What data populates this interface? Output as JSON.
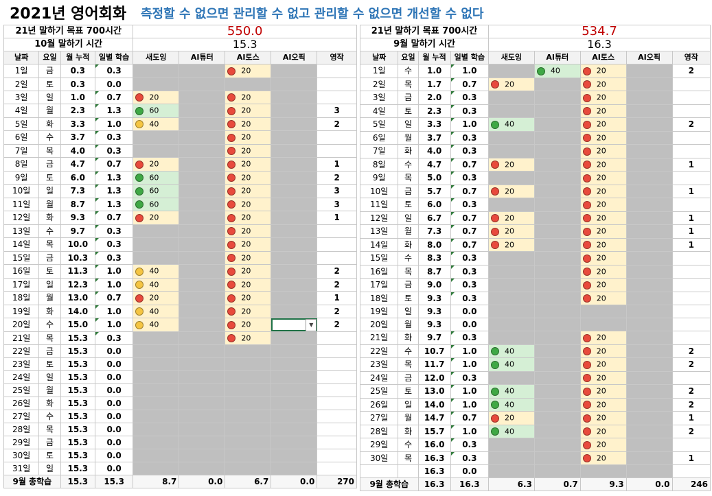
{
  "title": {
    "main": "2021년 영어회화",
    "sub": "측정할 수 없으면  관리할 수 없고 관리할 수 없으면 개선할 수 없다"
  },
  "colors": {
    "red": "#e84a3c",
    "yellow": "#f5c542",
    "green": "#3fa845",
    "gray": "#bfbfbf",
    "goal": "#c00000",
    "subtitle": "#2e75b6"
  },
  "headers": [
    "날짜",
    "요일",
    "월 누적",
    "일별 학습",
    "새도잉",
    "AI튜터",
    "AI토스",
    "AI오픽",
    "영작"
  ],
  "october": {
    "goal_label": "21년 말하기 목표 700시간",
    "goal_value": "550.0",
    "month_label": "10월 말하기 시간",
    "month_value": "15.3",
    "total_label": "9월 총학습",
    "totals": [
      "15.3",
      "15.3",
      "8.7",
      "0.0",
      "6.7",
      "0.0",
      "270"
    ],
    "rows": [
      {
        "date": "1일",
        "day": "금",
        "acc": "0.3",
        "daily": "0.3",
        "sh": null,
        "tu": null,
        "to": {
          "c": "r",
          "v": "20"
        },
        "op": null,
        "en": ""
      },
      {
        "date": "2일",
        "day": "토",
        "acc": "0.3",
        "daily": "0.0",
        "sh": null,
        "tu": null,
        "to": null,
        "op": null,
        "en": ""
      },
      {
        "date": "3일",
        "day": "일",
        "acc": "1.0",
        "daily": "0.7",
        "sh": {
          "c": "r",
          "v": "20"
        },
        "tu": null,
        "to": {
          "c": "r",
          "v": "20"
        },
        "op": null,
        "en": ""
      },
      {
        "date": "4일",
        "day": "월",
        "acc": "2.3",
        "daily": "1.3",
        "sh": {
          "c": "g",
          "v": "60"
        },
        "tu": null,
        "to": {
          "c": "r",
          "v": "20"
        },
        "op": null,
        "en": "3"
      },
      {
        "date": "5일",
        "day": "화",
        "acc": "3.3",
        "daily": "1.0",
        "sh": {
          "c": "y",
          "v": "40"
        },
        "tu": null,
        "to": {
          "c": "r",
          "v": "20"
        },
        "op": null,
        "en": "2"
      },
      {
        "date": "6일",
        "day": "수",
        "acc": "3.7",
        "daily": "0.3",
        "sh": null,
        "tu": null,
        "to": {
          "c": "r",
          "v": "20"
        },
        "op": null,
        "en": ""
      },
      {
        "date": "7일",
        "day": "목",
        "acc": "4.0",
        "daily": "0.3",
        "sh": null,
        "tu": null,
        "to": {
          "c": "r",
          "v": "20"
        },
        "op": null,
        "en": ""
      },
      {
        "date": "8일",
        "day": "금",
        "acc": "4.7",
        "daily": "0.7",
        "sh": {
          "c": "r",
          "v": "20"
        },
        "tu": null,
        "to": {
          "c": "r",
          "v": "20"
        },
        "op": null,
        "en": "1"
      },
      {
        "date": "9일",
        "day": "토",
        "acc": "6.0",
        "daily": "1.3",
        "sh": {
          "c": "g",
          "v": "60"
        },
        "tu": null,
        "to": {
          "c": "r",
          "v": "20"
        },
        "op": null,
        "en": "2"
      },
      {
        "date": "10일",
        "day": "일",
        "acc": "7.3",
        "daily": "1.3",
        "sh": {
          "c": "g",
          "v": "60"
        },
        "tu": null,
        "to": {
          "c": "r",
          "v": "20"
        },
        "op": null,
        "en": "3"
      },
      {
        "date": "11일",
        "day": "월",
        "acc": "8.7",
        "daily": "1.3",
        "sh": {
          "c": "g",
          "v": "60"
        },
        "tu": null,
        "to": {
          "c": "r",
          "v": "20"
        },
        "op": null,
        "en": "3"
      },
      {
        "date": "12일",
        "day": "화",
        "acc": "9.3",
        "daily": "0.7",
        "sh": {
          "c": "r",
          "v": "20"
        },
        "tu": null,
        "to": {
          "c": "r",
          "v": "20"
        },
        "op": null,
        "en": "1"
      },
      {
        "date": "13일",
        "day": "수",
        "acc": "9.7",
        "daily": "0.3",
        "sh": null,
        "tu": null,
        "to": {
          "c": "r",
          "v": "20"
        },
        "op": null,
        "en": ""
      },
      {
        "date": "14일",
        "day": "목",
        "acc": "10.0",
        "daily": "0.3",
        "sh": null,
        "tu": null,
        "to": {
          "c": "r",
          "v": "20"
        },
        "op": null,
        "en": ""
      },
      {
        "date": "15일",
        "day": "금",
        "acc": "10.3",
        "daily": "0.3",
        "sh": null,
        "tu": null,
        "to": {
          "c": "r",
          "v": "20"
        },
        "op": null,
        "en": ""
      },
      {
        "date": "16일",
        "day": "토",
        "acc": "11.3",
        "daily": "1.0",
        "sh": {
          "c": "y",
          "v": "40"
        },
        "tu": null,
        "to": {
          "c": "r",
          "v": "20"
        },
        "op": null,
        "en": "2"
      },
      {
        "date": "17일",
        "day": "일",
        "acc": "12.3",
        "daily": "1.0",
        "sh": {
          "c": "y",
          "v": "40"
        },
        "tu": null,
        "to": {
          "c": "r",
          "v": "20"
        },
        "op": null,
        "en": "2"
      },
      {
        "date": "18일",
        "day": "월",
        "acc": "13.0",
        "daily": "0.7",
        "sh": {
          "c": "r",
          "v": "20"
        },
        "tu": null,
        "to": {
          "c": "r",
          "v": "20"
        },
        "op": null,
        "en": "1"
      },
      {
        "date": "19일",
        "day": "화",
        "acc": "14.0",
        "daily": "1.0",
        "sh": {
          "c": "y",
          "v": "40"
        },
        "tu": null,
        "to": {
          "c": "r",
          "v": "20"
        },
        "op": null,
        "en": "2"
      },
      {
        "date": "20일",
        "day": "수",
        "acc": "15.0",
        "daily": "1.0",
        "sh": {
          "c": "y",
          "v": "40"
        },
        "tu": null,
        "to": {
          "c": "r",
          "v": "20"
        },
        "op": "sel",
        "en": "2"
      },
      {
        "date": "21일",
        "day": "목",
        "acc": "15.3",
        "daily": "0.3",
        "sh": null,
        "tu": null,
        "to": {
          "c": "r",
          "v": "20"
        },
        "op": null,
        "en": ""
      },
      {
        "date": "22일",
        "day": "금",
        "acc": "15.3",
        "daily": "0.0",
        "sh": null,
        "tu": null,
        "to": null,
        "op": null,
        "en": ""
      },
      {
        "date": "23일",
        "day": "토",
        "acc": "15.3",
        "daily": "0.0",
        "sh": null,
        "tu": null,
        "to": null,
        "op": null,
        "en": ""
      },
      {
        "date": "24일",
        "day": "일",
        "acc": "15.3",
        "daily": "0.0",
        "sh": null,
        "tu": null,
        "to": null,
        "op": null,
        "en": ""
      },
      {
        "date": "25일",
        "day": "월",
        "acc": "15.3",
        "daily": "0.0",
        "sh": null,
        "tu": null,
        "to": null,
        "op": null,
        "en": ""
      },
      {
        "date": "26일",
        "day": "화",
        "acc": "15.3",
        "daily": "0.0",
        "sh": null,
        "tu": null,
        "to": null,
        "op": null,
        "en": ""
      },
      {
        "date": "27일",
        "day": "수",
        "acc": "15.3",
        "daily": "0.0",
        "sh": null,
        "tu": null,
        "to": null,
        "op": null,
        "en": ""
      },
      {
        "date": "28일",
        "day": "목",
        "acc": "15.3",
        "daily": "0.0",
        "sh": null,
        "tu": null,
        "to": null,
        "op": null,
        "en": ""
      },
      {
        "date": "29일",
        "day": "금",
        "acc": "15.3",
        "daily": "0.0",
        "sh": null,
        "tu": null,
        "to": null,
        "op": null,
        "en": ""
      },
      {
        "date": "30일",
        "day": "토",
        "acc": "15.3",
        "daily": "0.0",
        "sh": null,
        "tu": null,
        "to": null,
        "op": null,
        "en": ""
      },
      {
        "date": "31일",
        "day": "일",
        "acc": "15.3",
        "daily": "0.0",
        "sh": null,
        "tu": null,
        "to": null,
        "op": null,
        "en": ""
      }
    ]
  },
  "september": {
    "goal_label": "21년 말하기 목표 700시간",
    "goal_value": "534.7",
    "month_label": "9월 말하기 시간",
    "month_value": "16.3",
    "total_label": "9월 총학습",
    "totals": [
      "16.3",
      "16.3",
      "6.3",
      "0.7",
      "9.3",
      "0.0",
      "246"
    ],
    "rows": [
      {
        "date": "1일",
        "day": "수",
        "acc": "1.0",
        "daily": "1.0",
        "sh": null,
        "tu": {
          "c": "g",
          "v": "40"
        },
        "to": {
          "c": "r",
          "v": "20"
        },
        "op": null,
        "en": "2"
      },
      {
        "date": "2일",
        "day": "목",
        "acc": "1.7",
        "daily": "0.7",
        "sh": {
          "c": "r",
          "v": "20"
        },
        "tu": null,
        "to": {
          "c": "r",
          "v": "20"
        },
        "op": null,
        "en": ""
      },
      {
        "date": "3일",
        "day": "금",
        "acc": "2.0",
        "daily": "0.3",
        "sh": null,
        "tu": null,
        "to": {
          "c": "r",
          "v": "20"
        },
        "op": null,
        "en": ""
      },
      {
        "date": "4일",
        "day": "토",
        "acc": "2.3",
        "daily": "0.3",
        "sh": null,
        "tu": null,
        "to": {
          "c": "r",
          "v": "20"
        },
        "op": null,
        "en": ""
      },
      {
        "date": "5일",
        "day": "일",
        "acc": "3.3",
        "daily": "1.0",
        "sh": {
          "c": "g",
          "v": "40"
        },
        "tu": null,
        "to": {
          "c": "r",
          "v": "20"
        },
        "op": null,
        "en": "2"
      },
      {
        "date": "6일",
        "day": "월",
        "acc": "3.7",
        "daily": "0.3",
        "sh": null,
        "tu": null,
        "to": {
          "c": "r",
          "v": "20"
        },
        "op": null,
        "en": ""
      },
      {
        "date": "7일",
        "day": "화",
        "acc": "4.0",
        "daily": "0.3",
        "sh": null,
        "tu": null,
        "to": {
          "c": "r",
          "v": "20"
        },
        "op": null,
        "en": ""
      },
      {
        "date": "8일",
        "day": "수",
        "acc": "4.7",
        "daily": "0.7",
        "sh": {
          "c": "r",
          "v": "20"
        },
        "tu": null,
        "to": {
          "c": "r",
          "v": "20"
        },
        "op": null,
        "en": "1"
      },
      {
        "date": "9일",
        "day": "목",
        "acc": "5.0",
        "daily": "0.3",
        "sh": null,
        "tu": null,
        "to": {
          "c": "r",
          "v": "20"
        },
        "op": null,
        "en": ""
      },
      {
        "date": "10일",
        "day": "금",
        "acc": "5.7",
        "daily": "0.7",
        "sh": {
          "c": "r",
          "v": "20"
        },
        "tu": null,
        "to": {
          "c": "r",
          "v": "20"
        },
        "op": null,
        "en": "1"
      },
      {
        "date": "11일",
        "day": "토",
        "acc": "6.0",
        "daily": "0.3",
        "sh": null,
        "tu": null,
        "to": {
          "c": "r",
          "v": "20"
        },
        "op": null,
        "en": ""
      },
      {
        "date": "12일",
        "day": "일",
        "acc": "6.7",
        "daily": "0.7",
        "sh": {
          "c": "r",
          "v": "20"
        },
        "tu": null,
        "to": {
          "c": "r",
          "v": "20"
        },
        "op": null,
        "en": "1"
      },
      {
        "date": "13일",
        "day": "월",
        "acc": "7.3",
        "daily": "0.7",
        "sh": {
          "c": "r",
          "v": "20"
        },
        "tu": null,
        "to": {
          "c": "r",
          "v": "20"
        },
        "op": null,
        "en": "1"
      },
      {
        "date": "14일",
        "day": "화",
        "acc": "8.0",
        "daily": "0.7",
        "sh": {
          "c": "r",
          "v": "20"
        },
        "tu": null,
        "to": {
          "c": "r",
          "v": "20"
        },
        "op": null,
        "en": "1"
      },
      {
        "date": "15일",
        "day": "수",
        "acc": "8.3",
        "daily": "0.3",
        "sh": null,
        "tu": null,
        "to": {
          "c": "r",
          "v": "20"
        },
        "op": null,
        "en": ""
      },
      {
        "date": "16일",
        "day": "목",
        "acc": "8.7",
        "daily": "0.3",
        "sh": null,
        "tu": null,
        "to": {
          "c": "r",
          "v": "20"
        },
        "op": null,
        "en": ""
      },
      {
        "date": "17일",
        "day": "금",
        "acc": "9.0",
        "daily": "0.3",
        "sh": null,
        "tu": null,
        "to": {
          "c": "r",
          "v": "20"
        },
        "op": null,
        "en": ""
      },
      {
        "date": "18일",
        "day": "토",
        "acc": "9.3",
        "daily": "0.3",
        "sh": null,
        "tu": null,
        "to": {
          "c": "r",
          "v": "20"
        },
        "op": null,
        "en": ""
      },
      {
        "date": "19일",
        "day": "일",
        "acc": "9.3",
        "daily": "0.0",
        "sh": null,
        "tu": null,
        "to": null,
        "op": null,
        "en": ""
      },
      {
        "date": "20일",
        "day": "월",
        "acc": "9.3",
        "daily": "0.0",
        "sh": null,
        "tu": null,
        "to": null,
        "op": null,
        "en": ""
      },
      {
        "date": "21일",
        "day": "화",
        "acc": "9.7",
        "daily": "0.3",
        "sh": null,
        "tu": null,
        "to": {
          "c": "r",
          "v": "20"
        },
        "op": null,
        "en": ""
      },
      {
        "date": "22일",
        "day": "수",
        "acc": "10.7",
        "daily": "1.0",
        "sh": {
          "c": "g",
          "v": "40"
        },
        "tu": null,
        "to": {
          "c": "r",
          "v": "20"
        },
        "op": null,
        "en": "2"
      },
      {
        "date": "23일",
        "day": "목",
        "acc": "11.7",
        "daily": "1.0",
        "sh": {
          "c": "g",
          "v": "40"
        },
        "tu": null,
        "to": {
          "c": "r",
          "v": "20"
        },
        "op": null,
        "en": "2"
      },
      {
        "date": "24일",
        "day": "금",
        "acc": "12.0",
        "daily": "0.3",
        "sh": null,
        "tu": null,
        "to": {
          "c": "r",
          "v": "20"
        },
        "op": null,
        "en": ""
      },
      {
        "date": "25일",
        "day": "토",
        "acc": "13.0",
        "daily": "1.0",
        "sh": {
          "c": "g",
          "v": "40"
        },
        "tu": null,
        "to": {
          "c": "r",
          "v": "20"
        },
        "op": null,
        "en": "2"
      },
      {
        "date": "26일",
        "day": "일",
        "acc": "14.0",
        "daily": "1.0",
        "sh": {
          "c": "g",
          "v": "40"
        },
        "tu": null,
        "to": {
          "c": "r",
          "v": "20"
        },
        "op": null,
        "en": "2"
      },
      {
        "date": "27일",
        "day": "월",
        "acc": "14.7",
        "daily": "0.7",
        "sh": {
          "c": "r",
          "v": "20"
        },
        "tu": null,
        "to": {
          "c": "r",
          "v": "20"
        },
        "op": null,
        "en": "1"
      },
      {
        "date": "28일",
        "day": "화",
        "acc": "15.7",
        "daily": "1.0",
        "sh": {
          "c": "g",
          "v": "40"
        },
        "tu": null,
        "to": {
          "c": "r",
          "v": "20"
        },
        "op": null,
        "en": "2"
      },
      {
        "date": "29일",
        "day": "수",
        "acc": "16.0",
        "daily": "0.3",
        "sh": null,
        "tu": null,
        "to": {
          "c": "r",
          "v": "20"
        },
        "op": null,
        "en": ""
      },
      {
        "date": "30일",
        "day": "목",
        "acc": "16.3",
        "daily": "0.3",
        "sh": null,
        "tu": null,
        "to": {
          "c": "r",
          "v": "20"
        },
        "op": null,
        "en": "1"
      },
      {
        "date": "",
        "day": "",
        "acc": "16.3",
        "daily": "0.0",
        "sh": null,
        "tu": null,
        "to": null,
        "op": null,
        "en": ""
      }
    ]
  }
}
